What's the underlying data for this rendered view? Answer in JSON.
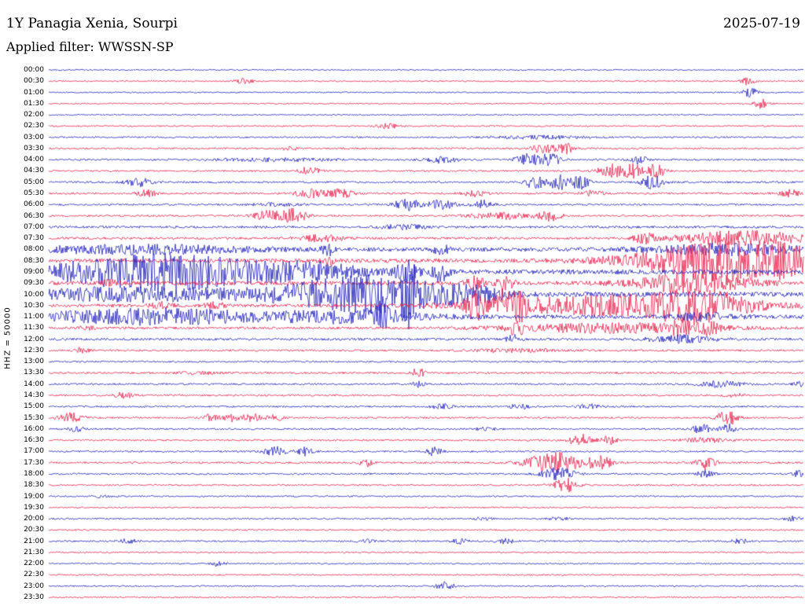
{
  "header": {
    "title": "1Y Panagia Xenia, Sourpi",
    "date": "2025-07-19",
    "filter_label": "Applied filter: WWSSN-SP"
  },
  "left_axis": {
    "label": "HHZ = 50000"
  },
  "chart_data": {
    "type": "line",
    "subtype": "helicorder-dayplot",
    "title": "1Y Panagia Xenia, Sourpi",
    "date": "2025-07-19",
    "filter": "WWSSN-SP",
    "scale_label": "HHZ = 50000",
    "row_duration_minutes": 30,
    "legend": "alternating trace colors per 30-minute row",
    "colors": {
      "blue": "#2222bb",
      "red": "#e8214d"
    },
    "rows_format": [
      "time_label",
      "color(b|r)",
      "base_noise_amplitude_px",
      "events as [position_fraction, amplitude_px, sigma_fraction]"
    ],
    "rows": [
      [
        "00:00",
        "b",
        0.8,
        []
      ],
      [
        "00:30",
        "r",
        0.8,
        [
          [
            0.26,
            4,
            0.008
          ],
          [
            0.925,
            5,
            0.007
          ]
        ]
      ],
      [
        "01:00",
        "b",
        0.8,
        [
          [
            0.93,
            6,
            0.007
          ]
        ]
      ],
      [
        "01:30",
        "r",
        0.8,
        [
          [
            0.945,
            6,
            0.007
          ]
        ]
      ],
      [
        "02:00",
        "b",
        0.8,
        []
      ],
      [
        "02:30",
        "r",
        0.9,
        [
          [
            0.45,
            3,
            0.01
          ]
        ]
      ],
      [
        "03:00",
        "b",
        1.0,
        [
          [
            0.65,
            2,
            0.04
          ]
        ]
      ],
      [
        "03:30",
        "r",
        1.1,
        [
          [
            0.32,
            2.5,
            0.008
          ],
          [
            0.655,
            7,
            0.01
          ],
          [
            0.685,
            7,
            0.008
          ]
        ]
      ],
      [
        "04:00",
        "b",
        1.1,
        [
          [
            0.3,
            2,
            0.05
          ],
          [
            0.52,
            4,
            0.015
          ],
          [
            0.635,
            7,
            0.012
          ],
          [
            0.665,
            7,
            0.01
          ],
          [
            0.78,
            6,
            0.008
          ]
        ]
      ],
      [
        "04:30",
        "r",
        1.1,
        [
          [
            0.345,
            5,
            0.01
          ],
          [
            0.745,
            8,
            0.012
          ],
          [
            0.775,
            9,
            0.01
          ],
          [
            0.805,
            9,
            0.008
          ]
        ]
      ],
      [
        "05:00",
        "b",
        1.2,
        [
          [
            0.12,
            5,
            0.012
          ],
          [
            0.645,
            9,
            0.01
          ],
          [
            0.675,
            10,
            0.012
          ],
          [
            0.705,
            8,
            0.008
          ],
          [
            0.8,
            9,
            0.01
          ]
        ]
      ],
      [
        "05:30",
        "r",
        1.2,
        [
          [
            0.13,
            4,
            0.01
          ],
          [
            0.345,
            6,
            0.012
          ],
          [
            0.385,
            7,
            0.012
          ],
          [
            0.565,
            4,
            0.01
          ],
          [
            0.72,
            3,
            0.01
          ],
          [
            0.98,
            5,
            0.01
          ]
        ]
      ],
      [
        "06:00",
        "b",
        1.2,
        [
          [
            0.3,
            2,
            0.02
          ],
          [
            0.475,
            7,
            0.012
          ],
          [
            0.52,
            6,
            0.012
          ],
          [
            0.575,
            5,
            0.01
          ]
        ]
      ],
      [
        "06:30",
        "r",
        1.2,
        [
          [
            0.29,
            7,
            0.012
          ],
          [
            0.325,
            9,
            0.012
          ],
          [
            0.6,
            4,
            0.03
          ],
          [
            0.665,
            6,
            0.01
          ]
        ]
      ],
      [
        "07:00",
        "b",
        1.4,
        [
          [
            0.47,
            3,
            0.02
          ]
        ]
      ],
      [
        "07:30",
        "r",
        1.5,
        [
          [
            0.36,
            4,
            0.02
          ],
          [
            0.79,
            6,
            0.01
          ],
          [
            0.92,
            9,
            0.06
          ]
        ]
      ],
      [
        "08:00",
        "b",
        2.5,
        [
          [
            0.12,
            5,
            0.1
          ],
          [
            0.37,
            7,
            0.006
          ],
          [
            0.52,
            5,
            0.008
          ],
          [
            0.9,
            6,
            0.07
          ]
        ]
      ],
      [
        "08:30",
        "r",
        2.5,
        [
          [
            0.37,
            6,
            0.006
          ],
          [
            0.92,
            26,
            0.09
          ]
        ]
      ],
      [
        "09:00",
        "b",
        3.0,
        [
          [
            0.15,
            22,
            0.1
          ],
          [
            0.35,
            8,
            0.05
          ],
          [
            0.475,
            14,
            0.01
          ],
          [
            0.52,
            12,
            0.008
          ]
        ]
      ],
      [
        "09:30",
        "r",
        2.5,
        [
          [
            0.08,
            3,
            0.01
          ],
          [
            0.565,
            9,
            0.008
          ],
          [
            0.605,
            8,
            0.008
          ],
          [
            0.85,
            13,
            0.05
          ]
        ]
      ],
      [
        "10:00",
        "b",
        3.0,
        [
          [
            0.12,
            8,
            0.1
          ],
          [
            0.42,
            22,
            0.08
          ],
          [
            0.48,
            26,
            0.008
          ],
          [
            0.56,
            8,
            0.03
          ]
        ]
      ],
      [
        "10:30",
        "r",
        2.0,
        [
          [
            0.15,
            4,
            0.01
          ],
          [
            0.22,
            4,
            0.01
          ],
          [
            0.565,
            16,
            0.008
          ],
          [
            0.6,
            16,
            0.008
          ],
          [
            0.625,
            14,
            0.008
          ],
          [
            0.75,
            12,
            0.12
          ],
          [
            0.86,
            16,
            0.04
          ]
        ]
      ],
      [
        "11:00",
        "b",
        2.5,
        [
          [
            0.14,
            9,
            0.11
          ],
          [
            0.4,
            7,
            0.07
          ],
          [
            0.44,
            10,
            0.01
          ],
          [
            0.87,
            4,
            0.03
          ]
        ]
      ],
      [
        "11:30",
        "r",
        1.5,
        [
          [
            0.05,
            2,
            0.01
          ],
          [
            0.62,
            9,
            0.008
          ],
          [
            0.75,
            6,
            0.1
          ],
          [
            0.84,
            8,
            0.01
          ],
          [
            0.875,
            8,
            0.008
          ]
        ]
      ],
      [
        "12:00",
        "b",
        1.5,
        [
          [
            0.615,
            6,
            0.006
          ],
          [
            0.84,
            5,
            0.03
          ]
        ]
      ],
      [
        "12:30",
        "r",
        1.2,
        [
          [
            0.045,
            5,
            0.006
          ],
          [
            0.62,
            2,
            0.04
          ]
        ]
      ],
      [
        "13:00",
        "b",
        1.1,
        []
      ],
      [
        "13:30",
        "r",
        1.2,
        [
          [
            0.2,
            1.5,
            0.02
          ],
          [
            0.49,
            9,
            0.005
          ]
        ]
      ],
      [
        "14:00",
        "b",
        1.1,
        [
          [
            0.49,
            3.5,
            0.006
          ],
          [
            0.89,
            4,
            0.02
          ],
          [
            0.995,
            3,
            0.006
          ]
        ]
      ],
      [
        "14:30",
        "r",
        1.1,
        [
          [
            0.1,
            4,
            0.008
          ],
          [
            0.91,
            2,
            0.01
          ]
        ]
      ],
      [
        "15:00",
        "b",
        1.1,
        [
          [
            0.52,
            3,
            0.01
          ],
          [
            0.625,
            3,
            0.01
          ],
          [
            0.715,
            3,
            0.01
          ]
        ]
      ],
      [
        "15:30",
        "r",
        1.1,
        [
          [
            0.03,
            6,
            0.012
          ],
          [
            0.215,
            5,
            0.008
          ],
          [
            0.245,
            5,
            0.008
          ],
          [
            0.27,
            5,
            0.008
          ],
          [
            0.3,
            4,
            0.008
          ],
          [
            0.9,
            9,
            0.01
          ]
        ]
      ],
      [
        "16:00",
        "b",
        1.1,
        [
          [
            0.035,
            3,
            0.008
          ],
          [
            0.58,
            2,
            0.01
          ],
          [
            0.865,
            6,
            0.008
          ],
          [
            0.9,
            6,
            0.008
          ]
        ]
      ],
      [
        "16:30",
        "r",
        1.1,
        [
          [
            0.705,
            8,
            0.01
          ],
          [
            0.74,
            6,
            0.008
          ],
          [
            0.87,
            3,
            0.02
          ]
        ]
      ],
      [
        "17:00",
        "b",
        1.1,
        [
          [
            0.3,
            6,
            0.01
          ],
          [
            0.34,
            5,
            0.008
          ],
          [
            0.51,
            5,
            0.008
          ]
        ]
      ],
      [
        "17:30",
        "r",
        1.2,
        [
          [
            0.42,
            5,
            0.006
          ],
          [
            0.67,
            13,
            0.025
          ],
          [
            0.73,
            10,
            0.01
          ],
          [
            0.87,
            9,
            0.008
          ]
        ]
      ],
      [
        "18:00",
        "b",
        1.1,
        [
          [
            0.675,
            8,
            0.015
          ],
          [
            0.87,
            4,
            0.008
          ],
          [
            0.995,
            5,
            0.006
          ]
        ]
      ],
      [
        "18:30",
        "r",
        1.0,
        [
          [
            0.685,
            9,
            0.012
          ]
        ]
      ],
      [
        "19:00",
        "b",
        0.9,
        [
          [
            0.07,
            1.5,
            0.01
          ]
        ]
      ],
      [
        "19:30",
        "r",
        0.9,
        []
      ],
      [
        "20:00",
        "b",
        1.0,
        [
          [
            0.575,
            2,
            0.008
          ],
          [
            0.675,
            3,
            0.008
          ],
          [
            0.985,
            3,
            0.008
          ]
        ]
      ],
      [
        "20:30",
        "r",
        0.9,
        []
      ],
      [
        "21:00",
        "b",
        1.0,
        [
          [
            0.105,
            3,
            0.008
          ],
          [
            0.42,
            2,
            0.008
          ],
          [
            0.545,
            3,
            0.008
          ],
          [
            0.605,
            3,
            0.008
          ],
          [
            0.915,
            3,
            0.008
          ]
        ]
      ],
      [
        "21:30",
        "r",
        0.9,
        []
      ],
      [
        "22:00",
        "b",
        0.9,
        [
          [
            0.225,
            4,
            0.006
          ]
        ]
      ],
      [
        "22:30",
        "r",
        0.9,
        []
      ],
      [
        "23:00",
        "b",
        0.9,
        [
          [
            0.525,
            6,
            0.008
          ]
        ]
      ],
      [
        "23:30",
        "r",
        0.9,
        []
      ]
    ]
  }
}
